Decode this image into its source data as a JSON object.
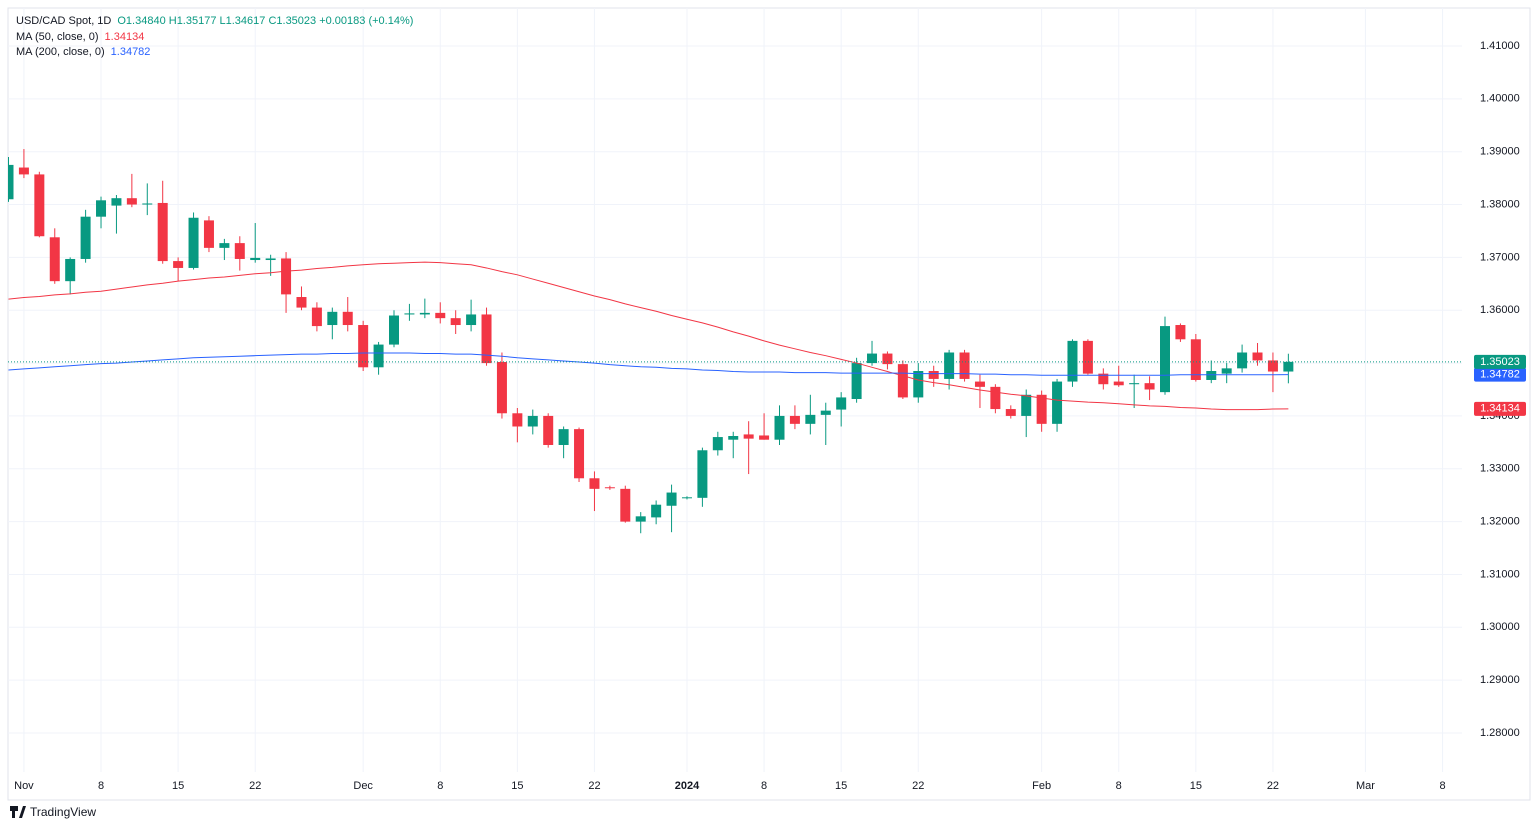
{
  "chart_data": {
    "type": "candlestick",
    "title": "USD/CAD Spot, 1D",
    "subtitle": "O1.34840 H1.35177 L1.34617 C1.35023 +0.00183 (+0.14%)",
    "brand": "TradingView",
    "up_color": "#089981",
    "down_color": "#f23645",
    "grid": true,
    "categories": [
      null,
      "Nov",
      null,
      null,
      null,
      null,
      "8",
      null,
      null,
      null,
      null,
      "15",
      null,
      null,
      null,
      null,
      "22",
      null,
      null,
      null,
      null,
      null,
      null,
      "Dec",
      null,
      null,
      null,
      null,
      "8",
      null,
      null,
      null,
      null,
      "15",
      null,
      null,
      null,
      null,
      "22",
      null,
      null,
      null,
      null,
      null,
      "2024",
      null,
      null,
      null,
      null,
      "8",
      null,
      null,
      null,
      null,
      "15",
      null,
      null,
      null,
      null,
      "22",
      null,
      null,
      null,
      null,
      null,
      null,
      null,
      "Feb",
      null,
      null,
      null,
      null,
      "8",
      null,
      null,
      null,
      null,
      "15",
      null,
      null,
      null,
      null,
      "22",
      null,
      null,
      null,
      null,
      null,
      "Mar",
      null,
      null,
      null,
      null,
      "8"
    ],
    "ohlc": {
      "open": [
        1.381,
        1.387,
        1.3857,
        1.3738,
        1.3655,
        1.3697,
        1.3777,
        1.3798,
        1.3812,
        1.38,
        1.3803,
        1.3693,
        1.368,
        1.377,
        1.3718,
        1.3727,
        1.3695,
        1.3695,
        1.3698,
        1.3625,
        1.3605,
        1.3572,
        1.3597,
        1.3572,
        1.3492,
        1.3535,
        1.3592,
        1.3592,
        1.3595,
        1.3585,
        1.3572,
        1.3592,
        1.3502,
        1.3405,
        1.338,
        1.34,
        1.3345,
        1.3375,
        1.3282,
        1.3265,
        1.3262,
        1.32,
        1.3208,
        1.323,
        1.3245,
        1.3245,
        1.3335,
        1.3355,
        1.3365,
        1.3363,
        1.3355,
        1.34,
        1.3385,
        1.3402,
        1.3412,
        1.3432,
        1.35,
        1.3518,
        1.3498,
        1.3435,
        1.3485,
        1.347,
        1.352,
        1.3465,
        1.3455,
        1.3413,
        1.34,
        1.344,
        1.3385,
        1.3465,
        1.3542,
        1.348,
        1.3465,
        1.346,
        1.3462,
        1.3445,
        1.3572,
        1.3545,
        1.3468,
        1.348,
        1.349,
        1.352,
        1.3505,
        1.3484,
        null,
        null,
        null,
        null,
        null,
        null,
        null,
        null,
        null,
        null
      ],
      "high": [
        1.389,
        1.3905,
        1.3862,
        1.3755,
        1.37,
        1.379,
        1.3815,
        1.3818,
        1.3858,
        1.384,
        1.3845,
        1.37,
        1.3785,
        1.3778,
        1.3735,
        1.374,
        1.3765,
        1.3705,
        1.371,
        1.3645,
        1.3615,
        1.3605,
        1.3625,
        1.358,
        1.354,
        1.36,
        1.3612,
        1.3622,
        1.3615,
        1.36,
        1.362,
        1.3605,
        1.352,
        1.3415,
        1.3412,
        1.3405,
        1.338,
        1.3378,
        1.3295,
        1.3268,
        1.3268,
        1.3218,
        1.324,
        1.327,
        1.3248,
        1.334,
        1.337,
        1.337,
        1.339,
        1.3405,
        1.342,
        1.342,
        1.344,
        1.3425,
        1.3445,
        1.351,
        1.3542,
        1.3522,
        1.3505,
        1.35,
        1.3495,
        1.3525,
        1.3525,
        1.3478,
        1.346,
        1.342,
        1.345,
        1.3448,
        1.347,
        1.3545,
        1.3545,
        1.349,
        1.3495,
        1.3478,
        1.3475,
        1.3588,
        1.3575,
        1.3555,
        1.3505,
        1.35,
        1.3535,
        1.3538,
        1.352,
        1.35177,
        null,
        null,
        null,
        null,
        null,
        null,
        null,
        null,
        null,
        null
      ],
      "low": [
        1.3805,
        1.385,
        1.3738,
        1.365,
        1.363,
        1.369,
        1.3755,
        1.3745,
        1.3795,
        1.378,
        1.3688,
        1.3655,
        1.3677,
        1.371,
        1.3695,
        1.3675,
        1.369,
        1.3665,
        1.3595,
        1.36,
        1.356,
        1.3545,
        1.356,
        1.3485,
        1.3478,
        1.353,
        1.358,
        1.3585,
        1.3575,
        1.3555,
        1.356,
        1.3495,
        1.3395,
        1.335,
        1.3365,
        1.334,
        1.332,
        1.3275,
        1.322,
        1.326,
        1.3198,
        1.3178,
        1.3195,
        1.318,
        1.3242,
        1.3228,
        1.3325,
        1.332,
        1.329,
        1.3355,
        1.3345,
        1.3375,
        1.3365,
        1.3345,
        1.338,
        1.3425,
        1.3495,
        1.3488,
        1.3432,
        1.3425,
        1.3455,
        1.345,
        1.3465,
        1.3415,
        1.3405,
        1.3395,
        1.336,
        1.337,
        1.337,
        1.3455,
        1.3478,
        1.345,
        1.3455,
        1.3415,
        1.343,
        1.344,
        1.354,
        1.3465,
        1.3462,
        1.3462,
        1.3482,
        1.3495,
        1.3445,
        1.34617,
        null,
        null,
        null,
        null,
        null,
        null,
        null,
        null,
        null,
        null
      ],
      "close": [
        1.3875,
        1.3857,
        1.374,
        1.3655,
        1.3697,
        1.3777,
        1.3808,
        1.3812,
        1.38,
        1.3802,
        1.3693,
        1.368,
        1.3775,
        1.3718,
        1.3727,
        1.3697,
        1.3699,
        1.3698,
        1.363,
        1.3605,
        1.357,
        1.3597,
        1.3572,
        1.3492,
        1.3535,
        1.359,
        1.3594,
        1.3595,
        1.3585,
        1.3572,
        1.3592,
        1.35,
        1.3405,
        1.338,
        1.34,
        1.3345,
        1.3375,
        1.3282,
        1.3262,
        1.3264,
        1.32,
        1.321,
        1.3232,
        1.3255,
        1.3246,
        1.3335,
        1.336,
        1.3362,
        1.3357,
        1.3355,
        1.34,
        1.3385,
        1.3402,
        1.341,
        1.3435,
        1.35,
        1.3518,
        1.3498,
        1.3435,
        1.3485,
        1.347,
        1.352,
        1.347,
        1.3455,
        1.3413,
        1.34,
        1.344,
        1.3385,
        1.3465,
        1.3542,
        1.348,
        1.346,
        1.3458,
        1.3462,
        1.345,
        1.357,
        1.3545,
        1.3468,
        1.3485,
        1.349,
        1.352,
        1.3505,
        1.3484,
        1.35023,
        null,
        null,
        null,
        null,
        null,
        null,
        null,
        null,
        null,
        null
      ]
    },
    "last_label": "1.35023",
    "overlays": [
      {
        "name": "MA (50, close, 0)",
        "color": "#f23645",
        "value_label": "1.34134",
        "values": [
          1.3621,
          1.3624,
          1.3626,
          1.3629,
          1.3631,
          1.3634,
          1.3636,
          1.364,
          1.3644,
          1.3648,
          1.3651,
          1.3655,
          1.3658,
          1.3661,
          1.3663,
          1.3666,
          1.3669,
          1.3671,
          1.3674,
          1.3676,
          1.3679,
          1.3681,
          1.3684,
          1.3686,
          1.3688,
          1.3689,
          1.369,
          1.3691,
          1.369,
          1.3688,
          1.3686,
          1.368,
          1.3673,
          1.3667,
          1.3659,
          1.3651,
          1.3643,
          1.3635,
          1.3627,
          1.362,
          1.3612,
          1.3605,
          1.3598,
          1.359,
          1.3583,
          1.3576,
          1.3568,
          1.3559,
          1.3551,
          1.3542,
          1.3534,
          1.3527,
          1.352,
          1.3514,
          1.3507,
          1.35,
          1.3492,
          1.3484,
          1.3476,
          1.3468,
          1.3463,
          1.3459,
          1.3454,
          1.3449,
          1.3445,
          1.3441,
          1.3438,
          1.3434,
          1.343,
          1.3428,
          1.3426,
          1.3425,
          1.3423,
          1.3421,
          1.3419,
          1.3418,
          1.3416,
          1.3415,
          1.3413,
          1.3412,
          1.3412,
          1.3412,
          1.3413,
          1.34134,
          null,
          null,
          null,
          null,
          null,
          null,
          null,
          null,
          null,
          null
        ]
      },
      {
        "name": "MA (200, close, 0)",
        "color": "#2962ff",
        "value_label": "1.34782",
        "values": [
          1.3487,
          1.3489,
          1.3491,
          1.3493,
          1.3495,
          1.3497,
          1.3499,
          1.35,
          1.3502,
          1.3504,
          1.3506,
          1.3508,
          1.351,
          1.3511,
          1.3512,
          1.3513,
          1.3514,
          1.3515,
          1.3516,
          1.3517,
          1.3517,
          1.3518,
          1.3518,
          1.3519,
          1.3519,
          1.3519,
          1.3519,
          1.3518,
          1.3518,
          1.3517,
          1.3517,
          1.3515,
          1.3513,
          1.351,
          1.3508,
          1.3506,
          1.3504,
          1.3502,
          1.35,
          1.3497,
          1.3495,
          1.3493,
          1.3492,
          1.349,
          1.3489,
          1.3487,
          1.3486,
          1.3484,
          1.3483,
          1.3483,
          1.3483,
          1.3482,
          1.3482,
          1.3482,
          1.3481,
          1.3481,
          1.3481,
          1.3481,
          1.3481,
          1.348,
          1.348,
          1.348,
          1.348,
          1.3479,
          1.3479,
          1.3478,
          1.3478,
          1.3477,
          1.3477,
          1.3477,
          1.3477,
          1.3477,
          1.3477,
          1.3477,
          1.3477,
          1.3477,
          1.3478,
          1.3478,
          1.3478,
          1.3478,
          1.3478,
          1.3478,
          1.3478,
          1.34782,
          null,
          null,
          null,
          null,
          null,
          null,
          null,
          null,
          null,
          null
        ]
      }
    ],
    "ylim": [
      1.27262,
      1.41719
    ],
    "yticks": [
      {
        "value": 1.28,
        "label": "1.28000"
      },
      {
        "value": 1.29,
        "label": "1.29000"
      },
      {
        "value": 1.3,
        "label": "1.30000"
      },
      {
        "value": 1.31,
        "label": "1.31000"
      },
      {
        "value": 1.32,
        "label": "1.32000"
      },
      {
        "value": 1.33,
        "label": "1.33000"
      },
      {
        "value": 1.34,
        "label": "1.34000"
      },
      {
        "value": 1.35,
        "label": "1.35000"
      },
      {
        "value": 1.36,
        "label": "1.36000"
      },
      {
        "value": 1.37,
        "label": "1.37000"
      },
      {
        "value": 1.38,
        "label": "1.38000"
      },
      {
        "value": 1.39,
        "label": "1.39000"
      },
      {
        "value": 1.4,
        "label": "1.40000"
      },
      {
        "value": 1.41,
        "label": "1.41000"
      }
    ]
  }
}
